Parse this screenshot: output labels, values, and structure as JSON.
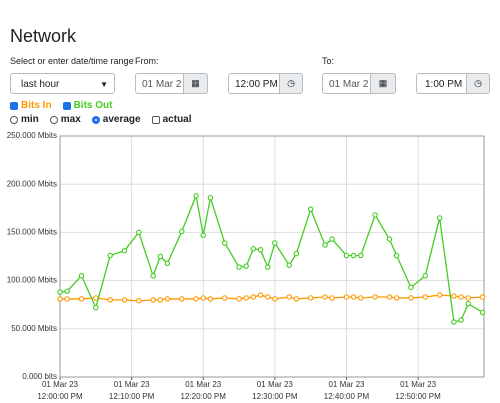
{
  "header": {
    "title": "Network"
  },
  "controls": {
    "range_label": "Select or enter date/time range",
    "range_value": "last hour",
    "from_label": "From:",
    "from_date": "01 Mar 2",
    "from_time": "12:00 PM",
    "to_label": "To:",
    "to_date": "01 Mar 2",
    "to_time": "1:00 PM",
    "modes": [
      "min",
      "max",
      "average",
      "actual"
    ],
    "selected_mode": "average"
  },
  "chart_data": {
    "type": "line",
    "x": [
      0,
      1,
      3,
      5,
      7,
      9,
      11,
      13,
      14,
      15,
      17,
      19,
      20,
      21,
      23,
      25,
      26,
      27,
      28,
      29,
      30,
      32,
      33,
      35,
      37,
      38,
      40,
      41,
      42,
      44,
      46,
      47,
      49,
      51,
      53,
      55,
      56,
      57,
      59
    ],
    "series": [
      {
        "name": "Bits In",
        "color": "#ff9900",
        "values": [
          81,
          81,
          81,
          82,
          80,
          80,
          79,
          80,
          80,
          81,
          81,
          81,
          82,
          81,
          82,
          81,
          82,
          83,
          85,
          83,
          81,
          83,
          81,
          82,
          83,
          82,
          83,
          83,
          82,
          83,
          83,
          82,
          82,
          83,
          85,
          84,
          83,
          82,
          83
        ]
      },
      {
        "name": "Bits Out",
        "color": "#44cc22",
        "values": [
          88,
          89,
          105,
          72,
          126,
          131,
          150,
          105,
          125,
          118,
          151,
          188,
          147,
          186,
          139,
          114,
          115,
          133,
          132,
          114,
          139,
          116,
          128,
          174,
          137,
          143,
          126,
          126,
          126,
          168,
          143,
          126,
          93,
          105,
          165,
          57,
          59,
          76,
          67
        ]
      }
    ],
    "xlim": [
      0,
      59.2
    ],
    "xticks": [
      {
        "value": 0,
        "label": [
          "01 Mar 23",
          "12:00:00 PM"
        ]
      },
      {
        "value": 10,
        "label": [
          "01 Mar 23",
          "12:10:00 PM"
        ]
      },
      {
        "value": 20,
        "label": [
          "01 Mar 23",
          "12:20:00 PM"
        ]
      },
      {
        "value": 30,
        "label": [
          "01 Mar 23",
          "12:30:00 PM"
        ]
      },
      {
        "value": 40,
        "label": [
          "01 Mar 23",
          "12:40:00 PM"
        ]
      },
      {
        "value": 50,
        "label": [
          "01 Mar 23",
          "12:50:00 PM"
        ]
      }
    ],
    "ylim": [
      0,
      250
    ],
    "yticks": [
      {
        "value": 0,
        "label": "0.000 bits"
      },
      {
        "value": 50,
        "label": "50.000 Mbits"
      },
      {
        "value": 100,
        "label": "100.000 Mbits"
      },
      {
        "value": 150,
        "label": "150.000 Mbits"
      },
      {
        "value": 200,
        "label": "200.000 Mbits"
      },
      {
        "value": 250,
        "label": "250.000 Mbits"
      }
    ],
    "grid": true
  }
}
